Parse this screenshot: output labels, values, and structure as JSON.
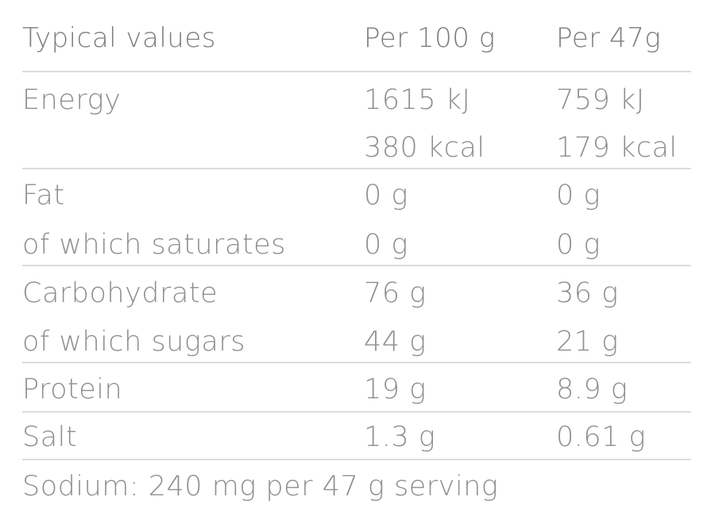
{
  "header": {
    "label": "Typical values",
    "col1": "Per 100 g",
    "col2": "Per 47g"
  },
  "rows": [
    {
      "label": "Energy",
      "per100": "1615 kJ",
      "perServing": "759 kJ"
    },
    {
      "label": "",
      "per100": "380 kcal",
      "perServing": "179 kcal"
    },
    {
      "label": "Fat",
      "per100": "0 g",
      "perServing": "0 g"
    },
    {
      "label": "of which saturates",
      "per100": "0 g",
      "perServing": "0 g"
    },
    {
      "label": "Carbohydrate",
      "per100": "76 g",
      "perServing": "36 g"
    },
    {
      "label": "of which sugars",
      "per100": "44 g",
      "perServing": "21 g"
    },
    {
      "label": "Protein",
      "per100": "19 g",
      "perServing": "8.9 g"
    },
    {
      "label": "Salt",
      "per100": "1.3 g",
      "perServing": "0.61 g"
    }
  ],
  "footer": "Sodium: 240 mg per 47 g serving",
  "colors": {
    "text": "#8f8f8f",
    "divider": "#dcdcdc"
  }
}
